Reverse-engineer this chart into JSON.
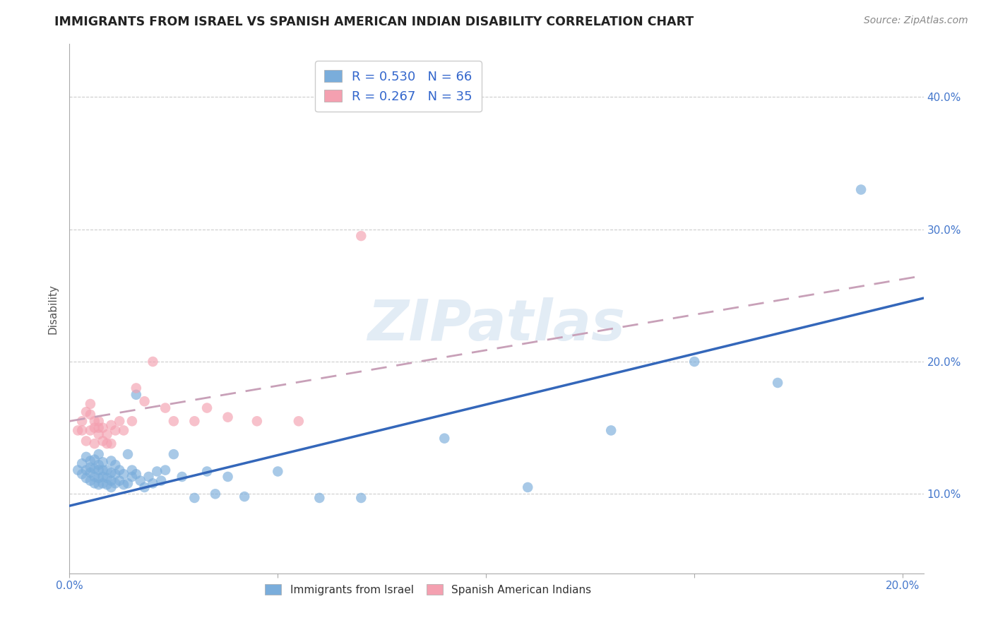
{
  "title": "IMMIGRANTS FROM ISRAEL VS SPANISH AMERICAN INDIAN DISABILITY CORRELATION CHART",
  "source": "Source: ZipAtlas.com",
  "ylabel": "Disability",
  "xlabel_ticks": [
    "0.0%",
    "",
    "",
    "",
    "20.0%"
  ],
  "ylabel_ticks": [
    "10.0%",
    "20.0%",
    "30.0%",
    "40.0%"
  ],
  "xlim": [
    0.0,
    0.205
  ],
  "ylim": [
    0.04,
    0.44
  ],
  "legend_entry1": "R = 0.530   N = 66",
  "legend_entry2": "R = 0.267   N = 35",
  "series1_label": "Immigrants from Israel",
  "series2_label": "Spanish American Indians",
  "series1_color": "#7aaddb",
  "series2_color": "#f4a0b0",
  "series1_line_color": "#3467ba",
  "series2_line_color": "#c8a0b8",
  "watermark": "ZIPatlas",
  "blue_line_x0": 0.0,
  "blue_line_y0": 0.091,
  "blue_line_x1": 0.205,
  "blue_line_y1": 0.248,
  "pink_line_x0": 0.0,
  "pink_line_y0": 0.155,
  "pink_line_x1": 0.205,
  "pink_line_y1": 0.265,
  "blue_scatter_x": [
    0.002,
    0.003,
    0.003,
    0.004,
    0.004,
    0.004,
    0.005,
    0.005,
    0.005,
    0.005,
    0.006,
    0.006,
    0.006,
    0.006,
    0.007,
    0.007,
    0.007,
    0.007,
    0.007,
    0.008,
    0.008,
    0.008,
    0.008,
    0.009,
    0.009,
    0.009,
    0.01,
    0.01,
    0.01,
    0.01,
    0.011,
    0.011,
    0.011,
    0.012,
    0.012,
    0.013,
    0.013,
    0.014,
    0.014,
    0.015,
    0.015,
    0.016,
    0.016,
    0.017,
    0.018,
    0.019,
    0.02,
    0.021,
    0.022,
    0.023,
    0.025,
    0.027,
    0.03,
    0.033,
    0.035,
    0.038,
    0.042,
    0.05,
    0.06,
    0.07,
    0.09,
    0.11,
    0.13,
    0.15,
    0.17,
    0.19
  ],
  "blue_scatter_y": [
    0.118,
    0.115,
    0.123,
    0.112,
    0.118,
    0.128,
    0.11,
    0.116,
    0.12,
    0.125,
    0.108,
    0.113,
    0.119,
    0.126,
    0.107,
    0.112,
    0.118,
    0.122,
    0.13,
    0.108,
    0.113,
    0.118,
    0.124,
    0.107,
    0.112,
    0.118,
    0.105,
    0.11,
    0.116,
    0.125,
    0.108,
    0.115,
    0.122,
    0.11,
    0.118,
    0.107,
    0.115,
    0.108,
    0.13,
    0.113,
    0.118,
    0.175,
    0.115,
    0.11,
    0.105,
    0.113,
    0.108,
    0.117,
    0.11,
    0.118,
    0.13,
    0.113,
    0.097,
    0.117,
    0.1,
    0.113,
    0.098,
    0.117,
    0.097,
    0.097,
    0.142,
    0.105,
    0.148,
    0.2,
    0.184,
    0.33
  ],
  "pink_scatter_x": [
    0.002,
    0.003,
    0.003,
    0.004,
    0.004,
    0.005,
    0.005,
    0.005,
    0.006,
    0.006,
    0.006,
    0.007,
    0.007,
    0.007,
    0.008,
    0.008,
    0.009,
    0.009,
    0.01,
    0.01,
    0.011,
    0.012,
    0.013,
    0.015,
    0.016,
    0.018,
    0.02,
    0.023,
    0.025,
    0.03,
    0.033,
    0.038,
    0.045,
    0.055,
    0.07
  ],
  "pink_scatter_y": [
    0.148,
    0.148,
    0.155,
    0.14,
    0.162,
    0.148,
    0.168,
    0.16,
    0.138,
    0.15,
    0.155,
    0.145,
    0.15,
    0.155,
    0.14,
    0.15,
    0.138,
    0.145,
    0.138,
    0.152,
    0.148,
    0.155,
    0.148,
    0.155,
    0.18,
    0.17,
    0.2,
    0.165,
    0.155,
    0.155,
    0.165,
    0.158,
    0.155,
    0.155,
    0.295
  ]
}
